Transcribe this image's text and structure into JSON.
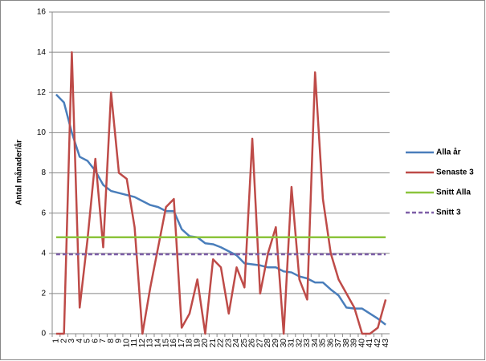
{
  "chart_data": {
    "type": "line",
    "y_label": "Antal månader/år",
    "categories": [
      "1",
      "2",
      "3",
      "4",
      "5",
      "6",
      "7",
      "8",
      "9",
      "10",
      "11",
      "12",
      "13",
      "14",
      "15",
      "16",
      "17",
      "18",
      "19",
      "20",
      "21",
      "22",
      "23",
      "24",
      "25",
      "26",
      "27",
      "28",
      "29",
      "30",
      "31",
      "32",
      "33",
      "34",
      "35",
      "36",
      "37",
      "38",
      "39",
      "40",
      "41",
      "42",
      "43"
    ],
    "series": [
      {
        "name": "Alla år",
        "color": "#4a7ebb",
        "values": [
          11.9,
          11.5,
          10.0,
          8.8,
          8.6,
          8.1,
          7.4,
          7.1,
          7.0,
          6.9,
          6.8,
          6.6,
          6.4,
          6.3,
          6.1,
          6.1,
          5.2,
          4.85,
          4.8,
          4.5,
          4.45,
          4.3,
          4.1,
          3.9,
          3.5,
          3.45,
          3.4,
          3.3,
          3.3,
          3.1,
          3.05,
          2.85,
          2.75,
          2.55,
          2.55,
          2.2,
          1.9,
          1.3,
          1.25,
          1.25,
          1.0,
          0.75,
          0.45
        ]
      },
      {
        "name": "Senaste 3",
        "color": "#be4b48",
        "values": [
          0,
          0,
          14,
          1.3,
          4.7,
          8.7,
          4.3,
          12,
          8,
          7.7,
          5.3,
          0,
          2.3,
          4.3,
          6.3,
          6.7,
          0.3,
          1,
          2.7,
          0,
          3.7,
          3.3,
          1,
          3.3,
          2.3,
          9.7,
          2,
          4,
          5.3,
          0,
          7.3,
          2.7,
          1.7,
          13,
          6.7,
          4,
          2.7,
          2,
          1.3,
          0,
          0,
          0.3,
          1.7
        ]
      },
      {
        "name": "Snitt Alla",
        "color": "#8cc43c",
        "values": [
          4.8,
          4.8,
          4.8,
          4.8,
          4.8,
          4.8,
          4.8,
          4.8,
          4.8,
          4.8,
          4.8,
          4.8,
          4.8,
          4.8,
          4.8,
          4.8,
          4.8,
          4.8,
          4.8,
          4.8,
          4.8,
          4.8,
          4.8,
          4.8,
          4.8,
          4.8,
          4.8,
          4.8,
          4.8,
          4.8,
          4.8,
          4.8,
          4.8,
          4.8,
          4.8,
          4.8,
          4.8,
          4.8,
          4.8,
          4.8,
          4.8,
          4.8,
          4.8
        ]
      },
      {
        "name": "Snitt 3",
        "color": "#7e5fa8",
        "dashed": true,
        "values": [
          3.95,
          3.95,
          3.95,
          3.95,
          3.95,
          3.95,
          3.95,
          3.95,
          3.95,
          3.95,
          3.95,
          3.95,
          3.95,
          3.95,
          3.95,
          3.95,
          3.95,
          3.95,
          3.95,
          3.95,
          3.95,
          3.95,
          3.95,
          3.95,
          3.95,
          3.95,
          3.95,
          3.95,
          3.95,
          3.95,
          3.95,
          3.95,
          3.95,
          3.95,
          3.95,
          3.95,
          3.95,
          3.95,
          3.95,
          3.95,
          3.95,
          3.95,
          3.95
        ]
      }
    ],
    "ylim": [
      0,
      16
    ],
    "yticks": [
      0,
      2,
      4,
      6,
      8,
      10,
      12,
      14,
      16
    ],
    "grid": true,
    "legend": "right"
  }
}
